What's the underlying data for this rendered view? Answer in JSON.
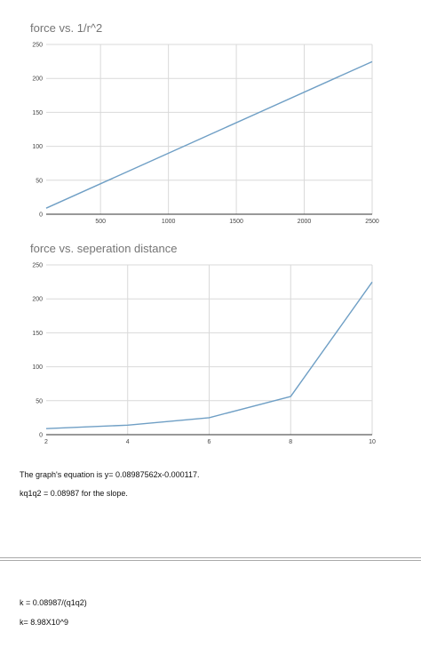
{
  "chart_data": [
    {
      "type": "line",
      "title": "force vs. 1/r^2",
      "xlabel": "",
      "ylabel": "",
      "xlim": [
        100,
        2500
      ],
      "ylim": [
        0,
        250
      ],
      "x_ticks": [
        500,
        1000,
        1500,
        2000,
        2500
      ],
      "y_ticks": [
        0,
        50,
        100,
        150,
        200,
        250
      ],
      "grid": true,
      "series": [
        {
          "x": [
            100,
            2500
          ],
          "y": [
            8.9,
            224.7
          ],
          "color": "#6f9fc5"
        }
      ]
    },
    {
      "type": "line",
      "title": "force vs. seperation distance",
      "xlabel": "",
      "ylabel": "",
      "xlim": [
        2,
        10
      ],
      "ylim": [
        0,
        250
      ],
      "x_ticks": [
        2,
        4,
        6,
        8,
        10
      ],
      "y_ticks": [
        0,
        50,
        100,
        150,
        200,
        250
      ],
      "grid": true,
      "series": [
        {
          "x": [
            2,
            4,
            6,
            8,
            10
          ],
          "y": [
            8.9,
            14.0,
            25.0,
            56.2,
            224.7
          ],
          "color": "#6f9fc5"
        }
      ]
    }
  ],
  "notes": {
    "equation": "The graph's equation is y= 0.08987562x-0.000117.",
    "slope": "kq1q2 = 0.08987 for the slope.",
    "k_formula": "k = 0.08987/(q1q2)",
    "k_value": "k= 8.98X10^9"
  }
}
